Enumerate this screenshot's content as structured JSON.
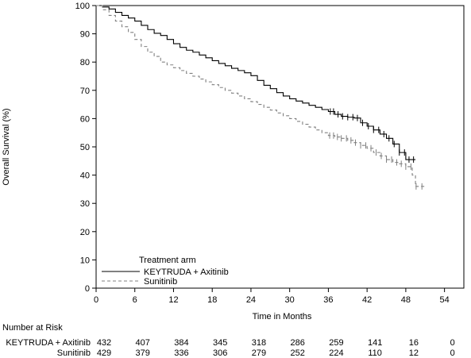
{
  "chart_data": {
    "type": "line",
    "xlabel": "Time in Months",
    "ylabel": "Overall Survival (%)",
    "xlim": [
      0,
      57
    ],
    "ylim": [
      0,
      100
    ],
    "x_ticks": [
      0,
      6,
      12,
      18,
      24,
      30,
      36,
      42,
      48,
      54
    ],
    "y_ticks": [
      0,
      10,
      20,
      30,
      40,
      50,
      60,
      70,
      80,
      90,
      100
    ],
    "legend": {
      "title": "Treatment arm",
      "placement": "bottom-left"
    },
    "series": [
      {
        "name": "KEYTRUDA + Axitinib",
        "color": "#000000",
        "line_style": "solid",
        "points": [
          [
            0,
            100
          ],
          [
            1,
            99.5
          ],
          [
            2,
            98.8
          ],
          [
            3,
            97.6
          ],
          [
            4,
            96.5
          ],
          [
            5,
            95.6
          ],
          [
            6,
            94.5
          ],
          [
            7,
            93.0
          ],
          [
            8,
            91.5
          ],
          [
            9,
            90.2
          ],
          [
            10,
            89.4
          ],
          [
            11,
            88.0
          ],
          [
            12,
            86.5
          ],
          [
            13,
            85.2
          ],
          [
            14,
            84.2
          ],
          [
            15,
            83.5
          ],
          [
            16,
            82.5
          ],
          [
            17,
            81.5
          ],
          [
            18,
            80.5
          ],
          [
            19,
            79.5
          ],
          [
            20,
            78.7
          ],
          [
            21,
            77.8
          ],
          [
            22,
            77.0
          ],
          [
            23,
            76.2
          ],
          [
            24,
            75.2
          ],
          [
            25,
            73.5
          ],
          [
            26,
            71.8
          ],
          [
            27,
            70.6
          ],
          [
            28,
            69.2
          ],
          [
            29,
            68.0
          ],
          [
            30,
            67.0
          ],
          [
            31,
            66.2
          ],
          [
            32,
            65.5
          ],
          [
            33,
            64.7
          ],
          [
            34,
            64.0
          ],
          [
            35,
            63.2
          ],
          [
            36,
            62.5
          ],
          [
            37,
            61.5
          ],
          [
            38,
            60.8
          ],
          [
            39,
            60.5
          ],
          [
            40,
            60.2
          ],
          [
            41,
            58.5
          ],
          [
            42,
            57.3
          ],
          [
            43,
            56.0
          ],
          [
            44,
            54.5
          ],
          [
            45,
            53.0
          ],
          [
            46,
            51.0
          ],
          [
            47,
            48.0
          ],
          [
            48,
            45.5
          ],
          [
            49.5,
            45.5
          ]
        ],
        "censor_marks": [
          36.3,
          36.8,
          37.5,
          38.2,
          39.0,
          39.8,
          40.5,
          41.3,
          42.2,
          43.0,
          43.8,
          44.6,
          45.4,
          46.2,
          47.0,
          47.8,
          48.5,
          49.2
        ]
      },
      {
        "name": "Sunitinib",
        "color": "#808080",
        "line_style": "dashed",
        "points": [
          [
            0,
            100
          ],
          [
            1,
            98.5
          ],
          [
            2,
            96.5
          ],
          [
            3,
            94.5
          ],
          [
            4,
            92.5
          ],
          [
            5,
            90.5
          ],
          [
            6,
            88.0
          ],
          [
            7,
            85.5
          ],
          [
            8,
            83.5
          ],
          [
            9,
            82.0
          ],
          [
            10,
            80.0
          ],
          [
            11,
            79.0
          ],
          [
            12,
            78.0
          ],
          [
            13,
            77.0
          ],
          [
            14,
            76.0
          ],
          [
            15,
            75.0
          ],
          [
            16,
            74.0
          ],
          [
            17,
            73.0
          ],
          [
            18,
            72.0
          ],
          [
            19,
            71.0
          ],
          [
            20,
            70.0
          ],
          [
            21,
            69.0
          ],
          [
            22,
            68.0
          ],
          [
            23,
            67.0
          ],
          [
            24,
            66.0
          ],
          [
            25,
            65.0
          ],
          [
            26,
            64.0
          ],
          [
            27,
            63.0
          ],
          [
            28,
            62.0
          ],
          [
            29,
            61.0
          ],
          [
            30,
            60.0
          ],
          [
            31,
            59.0
          ],
          [
            32,
            58.0
          ],
          [
            33,
            57.0
          ],
          [
            34,
            56.0
          ],
          [
            35,
            55.0
          ],
          [
            36,
            54.0
          ],
          [
            37,
            53.5
          ],
          [
            38,
            53.0
          ],
          [
            39,
            52.3
          ],
          [
            40,
            51.5
          ],
          [
            41,
            50.5
          ],
          [
            42,
            49.5
          ],
          [
            43,
            48.0
          ],
          [
            44,
            46.8
          ],
          [
            45,
            45.5
          ],
          [
            46,
            44.5
          ],
          [
            47,
            44.0
          ],
          [
            48,
            43.0
          ],
          [
            49,
            40.0
          ],
          [
            49.5,
            36.0
          ],
          [
            51,
            36.0
          ]
        ],
        "censor_marks": [
          36.2,
          36.8,
          37.4,
          38.0,
          38.8,
          39.5,
          40.2,
          41.0,
          41.8,
          42.6,
          43.4,
          44.2,
          45.0,
          45.8,
          46.6,
          47.3,
          48.0,
          48.8,
          49.6,
          50.5
        ]
      }
    ],
    "number_at_risk": {
      "title": "Number at Risk",
      "rows": [
        {
          "label": "KEYTRUDA + Axitinib",
          "values": [
            "432",
            "407",
            "384",
            "345",
            "318",
            "286",
            "259",
            "141",
            "16",
            "0"
          ]
        },
        {
          "label": "Sunitinib",
          "values": [
            "429",
            "379",
            "336",
            "306",
            "279",
            "252",
            "224",
            "110",
            "12",
            "0"
          ]
        }
      ]
    }
  }
}
